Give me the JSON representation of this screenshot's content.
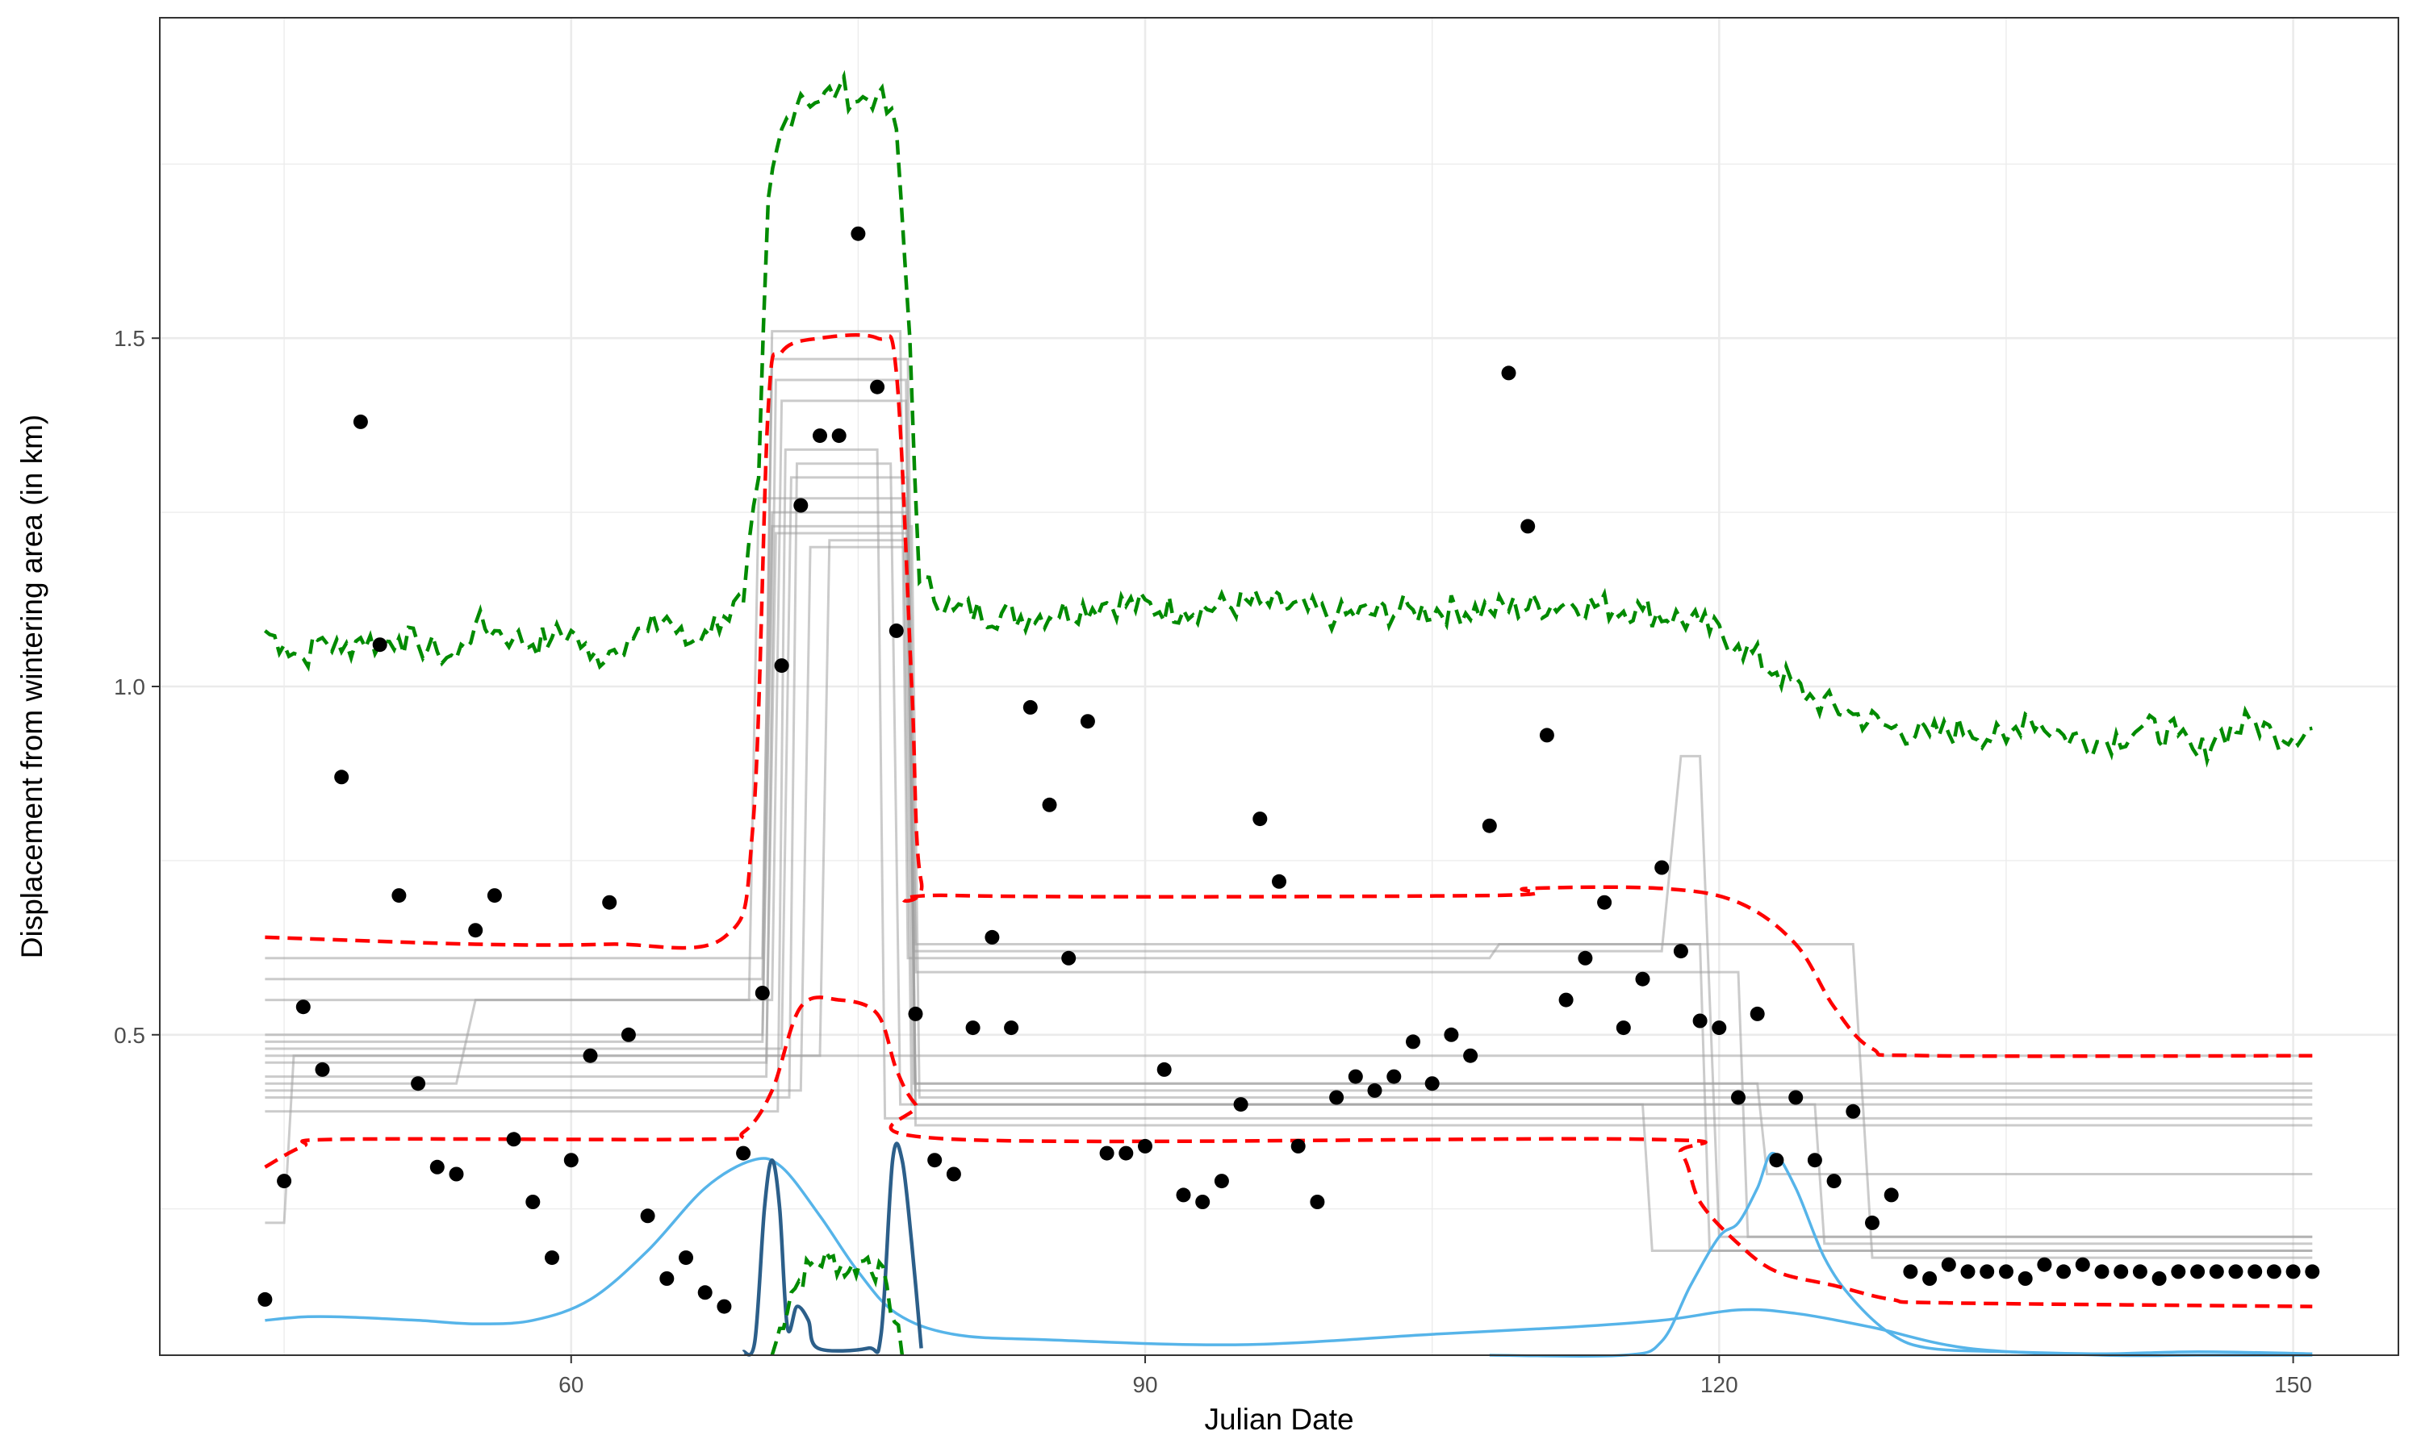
{
  "chart_data": {
    "type": "line",
    "xlabel": "Julian Date",
    "ylabel": "Displacement from wintering area (in km)",
    "xlim": [
      38.5,
      155.5
    ],
    "ylim": [
      0.04,
      1.96
    ],
    "x_ticks": [
      60,
      90,
      120,
      150
    ],
    "x_tick_labels": [
      "60",
      "90",
      "120",
      "150"
    ],
    "y_ticks": [
      0.5,
      1.0,
      1.5
    ],
    "y_tick_labels": [
      "0.5",
      "1.0",
      "1.5"
    ],
    "grid": true,
    "legend": "none",
    "colors": {
      "points": "#000000",
      "mean_line": "#ff0000",
      "green_line": "#008b00",
      "gray_lines": "#a0a0a0",
      "light_blue": "#56b4e9",
      "dark_blue": "#2c5f8a",
      "grid": "#ebebeb",
      "panel_border": "#333333"
    },
    "points": [
      [
        44,
        0.12
      ],
      [
        45,
        0.29
      ],
      [
        46,
        0.54
      ],
      [
        47,
        0.45
      ],
      [
        48,
        0.87
      ],
      [
        49,
        1.38
      ],
      [
        50,
        1.06
      ],
      [
        51,
        0.7
      ],
      [
        52,
        0.43
      ],
      [
        53,
        0.31
      ],
      [
        54,
        0.3
      ],
      [
        55,
        0.65
      ],
      [
        56,
        0.7
      ],
      [
        57,
        0.35
      ],
      [
        58,
        0.26
      ],
      [
        59,
        0.18
      ],
      [
        60,
        0.32
      ],
      [
        61,
        0.47
      ],
      [
        62,
        0.69
      ],
      [
        63,
        0.5
      ],
      [
        64,
        0.24
      ],
      [
        65,
        0.15
      ],
      [
        66,
        0.18
      ],
      [
        67,
        0.13
      ],
      [
        68,
        0.11
      ],
      [
        69,
        0.33
      ],
      [
        70,
        0.56
      ],
      [
        71,
        1.03
      ],
      [
        72,
        1.26
      ],
      [
        73,
        1.36
      ],
      [
        74,
        1.36
      ],
      [
        75,
        1.65
      ],
      [
        76,
        1.43
      ],
      [
        77,
        1.08
      ],
      [
        78,
        0.53
      ],
      [
        79,
        0.32
      ],
      [
        80,
        0.3
      ],
      [
        81,
        0.51
      ],
      [
        82,
        0.64
      ],
      [
        83,
        0.51
      ],
      [
        84,
        0.97
      ],
      [
        85,
        0.83
      ],
      [
        86,
        0.61
      ],
      [
        87,
        0.95
      ],
      [
        88,
        0.33
      ],
      [
        89,
        0.33
      ],
      [
        90,
        0.34
      ],
      [
        91,
        0.45
      ],
      [
        92,
        0.27
      ],
      [
        93,
        0.26
      ],
      [
        94,
        0.29
      ],
      [
        95,
        0.4
      ],
      [
        96,
        0.81
      ],
      [
        97,
        0.72
      ],
      [
        98,
        0.34
      ],
      [
        99,
        0.26
      ],
      [
        100,
        0.41
      ],
      [
        101,
        0.44
      ],
      [
        102,
        0.42
      ],
      [
        103,
        0.44
      ],
      [
        104,
        0.49
      ],
      [
        105,
        0.43
      ],
      [
        106,
        0.5
      ],
      [
        107,
        0.47
      ],
      [
        108,
        0.8
      ],
      [
        109,
        1.45
      ],
      [
        110,
        1.23
      ],
      [
        111,
        0.93
      ],
      [
        112,
        0.55
      ],
      [
        113,
        0.61
      ],
      [
        114,
        0.69
      ],
      [
        115,
        0.51
      ],
      [
        116,
        0.58
      ],
      [
        117,
        0.74
      ],
      [
        118,
        0.62
      ],
      [
        119,
        0.52
      ],
      [
        120,
        0.51
      ],
      [
        121,
        0.41
      ],
      [
        122,
        0.53
      ],
      [
        123,
        0.32
      ],
      [
        124,
        0.41
      ],
      [
        125,
        0.32
      ],
      [
        126,
        0.29
      ],
      [
        127,
        0.39
      ],
      [
        128,
        0.23
      ],
      [
        129,
        0.27
      ],
      [
        130,
        0.16
      ],
      [
        131,
        0.15
      ],
      [
        132,
        0.17
      ],
      [
        133,
        0.16
      ],
      [
        134,
        0.16
      ],
      [
        135,
        0.16
      ],
      [
        136,
        0.15
      ],
      [
        137,
        0.17
      ],
      [
        138,
        0.16
      ],
      [
        139,
        0.17
      ],
      [
        140,
        0.16
      ],
      [
        141,
        0.16
      ],
      [
        142,
        0.16
      ],
      [
        143,
        0.15
      ],
      [
        144,
        0.16
      ],
      [
        145,
        0.16
      ],
      [
        146,
        0.16
      ],
      [
        147,
        0.16
      ],
      [
        148,
        0.16
      ],
      [
        149,
        0.16
      ],
      [
        150,
        0.16
      ],
      [
        151,
        0.16
      ]
    ],
    "mean_upper": [
      [
        44,
        0.64
      ],
      [
        55,
        0.63
      ],
      [
        62,
        0.63
      ],
      [
        68,
        0.64
      ],
      [
        69.5,
        0.8
      ],
      [
        70.3,
        1.4
      ],
      [
        71,
        1.48
      ],
      [
        73,
        1.5
      ],
      [
        76,
        1.5
      ],
      [
        77,
        1.45
      ],
      [
        77.8,
        1.0
      ],
      [
        78.3,
        0.72
      ],
      [
        80,
        0.7
      ],
      [
        108,
        0.7
      ],
      [
        110,
        0.71
      ],
      [
        117,
        0.71
      ],
      [
        121,
        0.69
      ],
      [
        124,
        0.63
      ],
      [
        126,
        0.54
      ],
      [
        128,
        0.48
      ],
      [
        131,
        0.47
      ],
      [
        151,
        0.47
      ]
    ],
    "mean_lower": [
      [
        44,
        0.31
      ],
      [
        46,
        0.34
      ],
      [
        48,
        0.35
      ],
      [
        67,
        0.35
      ],
      [
        69,
        0.36
      ],
      [
        70.5,
        0.42
      ],
      [
        72,
        0.54
      ],
      [
        74,
        0.55
      ],
      [
        76,
        0.53
      ],
      [
        77,
        0.45
      ],
      [
        78,
        0.4
      ],
      [
        80,
        0.35
      ],
      [
        116,
        0.35
      ],
      [
        118,
        0.33
      ],
      [
        119,
        0.26
      ],
      [
        121,
        0.2
      ],
      [
        123,
        0.16
      ],
      [
        126,
        0.14
      ],
      [
        129,
        0.12
      ],
      [
        132,
        0.115
      ],
      [
        151,
        0.11
      ]
    ],
    "green_upper": [
      [
        44,
        1.08
      ],
      [
        45,
        1.06
      ],
      [
        46,
        1.04
      ],
      [
        47,
        1.07
      ],
      [
        48,
        1.05
      ],
      [
        49,
        1.07
      ],
      [
        50,
        1.06
      ],
      [
        51,
        1.07
      ],
      [
        52,
        1.06
      ],
      [
        53,
        1.05
      ],
      [
        54,
        1.04
      ],
      [
        55,
        1.09
      ],
      [
        56,
        1.08
      ],
      [
        57,
        1.07
      ],
      [
        58,
        1.06
      ],
      [
        59,
        1.07
      ],
      [
        60,
        1.08
      ],
      [
        61,
        1.04
      ],
      [
        62,
        1.05
      ],
      [
        63,
        1.07
      ],
      [
        64,
        1.08
      ],
      [
        65,
        1.1
      ],
      [
        66,
        1.06
      ],
      [
        67,
        1.08
      ],
      [
        68,
        1.1
      ],
      [
        69,
        1.12
      ],
      [
        69.8,
        1.3
      ],
      [
        70.3,
        1.7
      ],
      [
        71,
        1.8
      ],
      [
        72,
        1.85
      ],
      [
        73,
        1.84
      ],
      [
        74,
        1.86
      ],
      [
        75,
        1.84
      ],
      [
        76,
        1.85
      ],
      [
        77,
        1.8
      ],
      [
        77.7,
        1.5
      ],
      [
        78.2,
        1.15
      ],
      [
        80,
        1.11
      ],
      [
        84,
        1.1
      ],
      [
        88,
        1.12
      ],
      [
        92,
        1.11
      ],
      [
        96,
        1.12
      ],
      [
        100,
        1.1
      ],
      [
        104,
        1.11
      ],
      [
        108,
        1.11
      ],
      [
        112,
        1.12
      ],
      [
        116,
        1.11
      ],
      [
        119,
        1.09
      ],
      [
        121,
        1.06
      ],
      [
        123,
        1.02
      ],
      [
        125,
        0.98
      ],
      [
        127,
        0.96
      ],
      [
        129,
        0.94
      ],
      [
        131,
        0.93
      ],
      [
        133,
        0.94
      ],
      [
        135,
        0.92
      ],
      [
        136,
        0.96
      ],
      [
        138,
        0.93
      ],
      [
        140,
        0.92
      ],
      [
        142,
        0.94
      ],
      [
        144,
        0.93
      ],
      [
        145,
        0.9
      ],
      [
        146,
        0.93
      ],
      [
        148,
        0.95
      ],
      [
        149,
        0.93
      ],
      [
        151,
        0.94
      ]
    ],
    "green_lower": [
      [
        70.5,
        0.04
      ],
      [
        71.5,
        0.13
      ],
      [
        72.5,
        0.17
      ],
      [
        73.5,
        0.18
      ],
      [
        74.5,
        0.16
      ],
      [
        75.5,
        0.18
      ],
      [
        76.5,
        0.14
      ],
      [
        77.3,
        0.04
      ]
    ],
    "gray_tracks": [
      [
        [
          44,
          0.23
        ],
        [
          45,
          0.23
        ],
        [
          45.5,
          0.47
        ],
        [
          151,
          0.47
        ]
      ],
      [
        [
          44,
          0.43
        ],
        [
          54,
          0.43
        ],
        [
          55,
          0.55
        ],
        [
          70.5,
          0.55
        ],
        [
          71,
          1.41
        ],
        [
          77.5,
          1.41
        ],
        [
          78,
          0.4
        ],
        [
          151,
          0.4
        ]
      ],
      [
        [
          44,
          0.61
        ],
        [
          70,
          0.61
        ],
        [
          70.5,
          1.47
        ],
        [
          77.6,
          1.47
        ],
        [
          78,
          0.59
        ],
        [
          121,
          0.59
        ],
        [
          121.5,
          0.21
        ],
        [
          151,
          0.21
        ]
      ],
      [
        [
          44,
          0.58
        ],
        [
          70,
          0.58
        ],
        [
          70.5,
          1.51
        ],
        [
          77.2,
          1.51
        ],
        [
          77.6,
          0.61
        ],
        [
          108,
          0.61
        ],
        [
          108.5,
          0.63
        ],
        [
          127,
          0.63
        ],
        [
          128,
          0.18
        ],
        [
          151,
          0.18
        ]
      ],
      [
        [
          44,
          0.55
        ],
        [
          69.3,
          0.55
        ],
        [
          69.8,
          1.27
        ],
        [
          77.5,
          1.27
        ],
        [
          78,
          0.43
        ],
        [
          151,
          0.43
        ]
      ],
      [
        [
          44,
          0.5
        ],
        [
          70,
          0.5
        ],
        [
          70.5,
          1.25
        ],
        [
          77.6,
          1.25
        ],
        [
          78,
          0.42
        ],
        [
          151,
          0.42
        ]
      ],
      [
        [
          44,
          0.46
        ],
        [
          70.2,
          0.46
        ],
        [
          70.7,
          1.22
        ],
        [
          77.6,
          1.22
        ],
        [
          78,
          0.37
        ],
        [
          151,
          0.37
        ]
      ],
      [
        [
          44,
          0.49
        ],
        [
          70,
          0.49
        ],
        [
          70.5,
          1.23
        ],
        [
          77.8,
          1.23
        ],
        [
          78.2,
          0.41
        ],
        [
          151,
          0.41
        ]
      ],
      [
        [
          44,
          0.44
        ],
        [
          70.2,
          0.44
        ],
        [
          70.7,
          1.44
        ],
        [
          77.5,
          1.44
        ],
        [
          77.9,
          0.62
        ],
        [
          117,
          0.62
        ],
        [
          118,
          0.9
        ],
        [
          119,
          0.9
        ],
        [
          120,
          0.21
        ],
        [
          151,
          0.21
        ]
      ],
      [
        [
          44,
          0.48
        ],
        [
          71,
          0.48
        ],
        [
          71.5,
          1.3
        ],
        [
          77.6,
          1.3
        ],
        [
          78,
          0.63
        ],
        [
          119,
          0.63
        ],
        [
          119.5,
          0.19
        ],
        [
          151,
          0.19
        ]
      ],
      [
        [
          44,
          0.42
        ],
        [
          72,
          0.42
        ],
        [
          72.5,
          1.2
        ],
        [
          77.4,
          1.2
        ],
        [
          77.8,
          0.4
        ],
        [
          116,
          0.4
        ],
        [
          116.5,
          0.19
        ],
        [
          151,
          0.19
        ]
      ],
      [
        [
          44,
          0.41
        ],
        [
          71.4,
          0.41
        ],
        [
          71.8,
          1.32
        ],
        [
          76.7,
          1.32
        ],
        [
          77.2,
          0.4
        ],
        [
          125,
          0.4
        ],
        [
          125.5,
          0.2
        ],
        [
          151,
          0.2
        ]
      ],
      [
        [
          44,
          0.39
        ],
        [
          70.8,
          0.39
        ],
        [
          71.2,
          1.34
        ],
        [
          76,
          1.34
        ],
        [
          76.4,
          0.38
        ],
        [
          151,
          0.38
        ]
      ],
      [
        [
          44,
          0.47
        ],
        [
          73,
          0.47
        ],
        [
          73.5,
          1.21
        ],
        [
          77.5,
          1.21
        ],
        [
          77.9,
          0.43
        ],
        [
          122,
          0.43
        ],
        [
          122.5,
          0.3
        ],
        [
          151,
          0.3
        ]
      ]
    ],
    "light_blue_density": [
      [
        44,
        0.09
      ],
      [
        46,
        0.095
      ],
      [
        48,
        0.095
      ],
      [
        52,
        0.09
      ],
      [
        55,
        0.085
      ],
      [
        58,
        0.09
      ],
      [
        61,
        0.12
      ],
      [
        64,
        0.19
      ],
      [
        67,
        0.28
      ],
      [
        69.5,
        0.32
      ],
      [
        71,
        0.31
      ],
      [
        73,
        0.24
      ],
      [
        75,
        0.16
      ],
      [
        77,
        0.1
      ],
      [
        80,
        0.07
      ],
      [
        85,
        0.062
      ],
      [
        95,
        0.055
      ],
      [
        105,
        0.07
      ],
      [
        112,
        0.08
      ],
      [
        117,
        0.09
      ],
      [
        121,
        0.105
      ],
      [
        124,
        0.1
      ],
      [
        128,
        0.08
      ],
      [
        133,
        0.05
      ],
      [
        140,
        0.04
      ],
      [
        145,
        0.04
      ],
      [
        151,
        0.04
      ]
    ],
    "light_blue_peak": [
      [
        108,
        0.04
      ],
      [
        115,
        0.04
      ],
      [
        117,
        0.06
      ],
      [
        118.5,
        0.14
      ],
      [
        120,
        0.21
      ],
      [
        121,
        0.23
      ],
      [
        122,
        0.28
      ],
      [
        122.8,
        0.33
      ],
      [
        124,
        0.28
      ],
      [
        125.5,
        0.18
      ],
      [
        127,
        0.12
      ],
      [
        129,
        0.07
      ],
      [
        131,
        0.05
      ],
      [
        135,
        0.045
      ],
      [
        140,
        0.042
      ],
      [
        145,
        0.045
      ],
      [
        151,
        0.042
      ]
    ],
    "dark_blue_density": [
      [
        69,
        0.045
      ],
      [
        69.6,
        0.06
      ],
      [
        70.1,
        0.25
      ],
      [
        70.5,
        0.32
      ],
      [
        70.9,
        0.25
      ],
      [
        71.3,
        0.08
      ],
      [
        71.8,
        0.11
      ],
      [
        72.4,
        0.09
      ],
      [
        72.9,
        0.05
      ],
      [
        75.5,
        0.05
      ],
      [
        76.2,
        0.07
      ],
      [
        76.8,
        0.32
      ],
      [
        77.3,
        0.32
      ],
      [
        77.8,
        0.2
      ],
      [
        78.3,
        0.05
      ]
    ]
  }
}
